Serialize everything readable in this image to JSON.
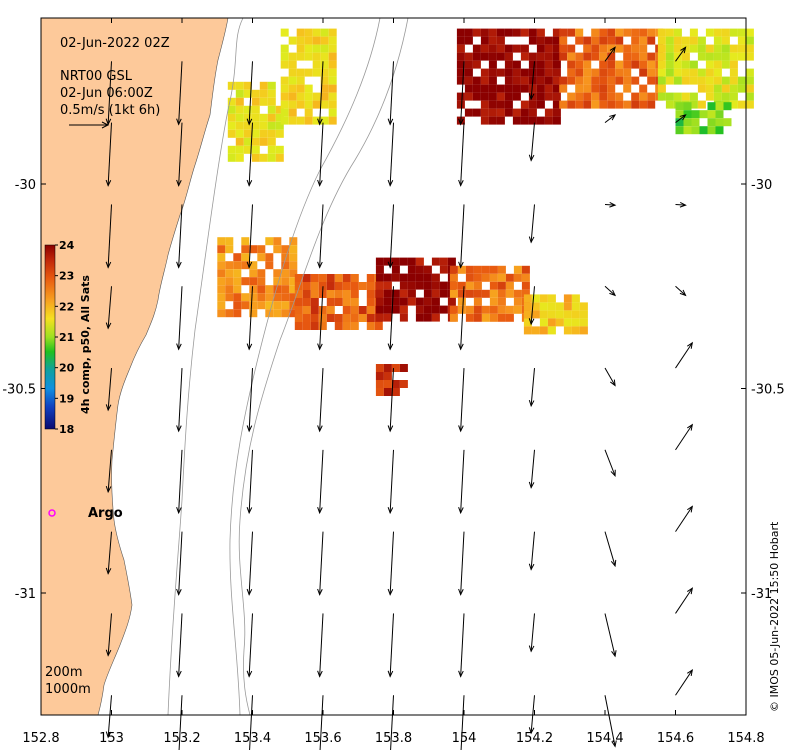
{
  "map": {
    "date_label": "02-Jun-2022 02Z",
    "product_label": "NRT00 GSL",
    "valid_label": "02-Jun 06:00Z",
    "vector_scale_label": "0.5m/s (1kt 6h)",
    "credit": "© IMOS 05-Jun-2022 15:50 Hobart",
    "argo_label": "Argo",
    "contour_labels": [
      "200m",
      "1000m"
    ],
    "colors": {
      "land": "#fdc99a",
      "argo": "#ff00ff",
      "contour": "#9a9a9a"
    },
    "axes": {
      "x_ticks": [
        "152.8",
        "153",
        "153.2",
        "153.4",
        "153.6",
        "153.8",
        "154",
        "154.2",
        "154.4",
        "154.6",
        "154.8"
      ],
      "y_ticks": [
        "-30",
        "-30.5",
        "-31"
      ]
    },
    "colorbar": {
      "title": "4h comp, p50, All Sats",
      "ticks": [
        "24",
        "23",
        "22",
        "21",
        "20",
        "19",
        "18"
      ],
      "min": 18,
      "max": 24
    }
  },
  "chart_data": {
    "type": "heatmap",
    "title": "02-Jun-2022 02Z",
    "colorbar_label": "4h comp, p50, All Sats",
    "value_range": [
      18,
      24
    ],
    "xlim": [
      152.8,
      154.8
    ],
    "ylim": [
      -31.3,
      -29.6
    ],
    "patches": [
      {
        "lon": [
          153.33,
          153.47
        ],
        "lat": [
          -29.94,
          -29.75
        ],
        "value": 21.7
      },
      {
        "lon": [
          153.48,
          153.63
        ],
        "lat": [
          -29.85,
          -29.62
        ],
        "value": 21.8
      },
      {
        "lon": [
          153.98,
          154.27
        ],
        "lat": [
          -29.84,
          -29.62
        ],
        "value": 24.0
      },
      {
        "lon": [
          154.27,
          154.55
        ],
        "lat": [
          -29.8,
          -29.62
        ],
        "value": 22.9
      },
      {
        "lon": [
          154.55,
          154.8
        ],
        "lat": [
          -29.8,
          -29.62
        ],
        "value": 21.5
      },
      {
        "lon": [
          154.6,
          154.75
        ],
        "lat": [
          -29.86,
          -29.8
        ],
        "value": 20.8
      },
      {
        "lon": [
          153.3,
          153.52
        ],
        "lat": [
          -30.32,
          -30.13
        ],
        "value": 22.6
      },
      {
        "lon": [
          153.52,
          153.75
        ],
        "lat": [
          -30.35,
          -30.22
        ],
        "value": 23.0
      },
      {
        "lon": [
          153.75,
          153.96
        ],
        "lat": [
          -30.33,
          -30.18
        ],
        "value": 23.9
      },
      {
        "lon": [
          153.96,
          154.17
        ],
        "lat": [
          -30.33,
          -30.2
        ],
        "value": 22.8
      },
      {
        "lon": [
          154.17,
          154.34
        ],
        "lat": [
          -30.35,
          -30.27
        ],
        "value": 22.0
      },
      {
        "lon": [
          153.75,
          153.83
        ],
        "lat": [
          -30.5,
          -30.44
        ],
        "value": 23.5
      }
    ],
    "vectors": [
      {
        "lon": 153.6,
        "lat": -29.9,
        "u": 0.05,
        "v": -0.45
      },
      {
        "lon": 154.0,
        "lat": -29.9,
        "u": -0.05,
        "v": -0.5
      },
      {
        "lon": 154.2,
        "lat": -30.05,
        "u": -0.03,
        "v": -0.35
      },
      {
        "lon": 154.6,
        "lat": -30.5,
        "u": 0.1,
        "v": 0.1
      },
      {
        "lon": 154.6,
        "lat": -30.8,
        "u": 0.15,
        "v": 0.1
      },
      {
        "lon": 154.6,
        "lat": -31.15,
        "u": 0.15,
        "v": 0.15
      }
    ]
  }
}
